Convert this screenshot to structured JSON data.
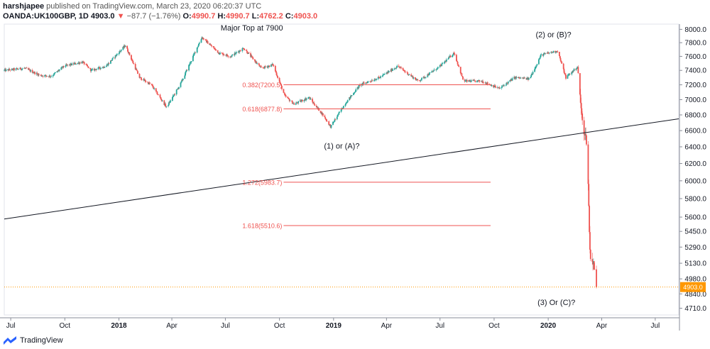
{
  "header": {
    "author": "harshjapee",
    "published": "published on TradingView.com, March 23, 2020 06:20:37 UTC",
    "symbol": "OANDA:UK100GBP, 1D",
    "last": "4903.0",
    "arrow": "▼",
    "change": "−87.7 (−1.76%)",
    "o_label": "O:",
    "o_val": "4990.7",
    "h_label": "H:",
    "h_val": "4990.7",
    "l_label": "L:",
    "l_val": "4762.2",
    "c_label": "C:",
    "c_val": "4903.0"
  },
  "footer": {
    "brand": "TradingView"
  },
  "colors": {
    "up": "#26a69a",
    "down": "#ef5350",
    "fib": "#ef5350",
    "trend": "#131722",
    "last": "#ff9800"
  },
  "chart_data": {
    "type": "candlestick",
    "y_scale": "log",
    "ylim": [
      4650,
      8080
    ],
    "y_ticks": [
      "8000.0",
      "7800.0",
      "7600.0",
      "7400.0",
      "7200.0",
      "7000.0",
      "6800.0",
      "6600.0",
      "6400.0",
      "6200.0",
      "6000.0",
      "5800.0",
      "5600.0",
      "5450.0",
      "5290.0",
      "5130.0",
      "4980.0",
      "4840.0",
      "4710.0"
    ],
    "x_ticks": [
      "Jul",
      "Oct",
      "2018",
      "Apr",
      "Jul",
      "Oct",
      "2019",
      "Apr",
      "Jul",
      "Oct",
      "2020",
      "Apr",
      "Jul"
    ],
    "x_range": [
      "2017-06-20",
      "2020-08-10"
    ],
    "last_price": "4903.0",
    "price_path": [
      [
        "2017-06-20",
        7400
      ],
      [
        "2017-07-25",
        7430
      ],
      [
        "2017-08-20",
        7330
      ],
      [
        "2017-09-08",
        7320
      ],
      [
        "2017-09-30",
        7460
      ],
      [
        "2017-10-31",
        7520
      ],
      [
        "2017-11-15",
        7400
      ],
      [
        "2017-12-10",
        7460
      ],
      [
        "2018-01-12",
        7760
      ],
      [
        "2018-02-05",
        7300
      ],
      [
        "2018-02-25",
        7200
      ],
      [
        "2018-03-23",
        6900
      ],
      [
        "2018-04-15",
        7200
      ],
      [
        "2018-05-22",
        7880
      ],
      [
        "2018-06-20",
        7650
      ],
      [
        "2018-07-10",
        7600
      ],
      [
        "2018-08-01",
        7720
      ],
      [
        "2018-08-31",
        7430
      ],
      [
        "2018-09-20",
        7480
      ],
      [
        "2018-10-10",
        7050
      ],
      [
        "2018-10-26",
        6940
      ],
      [
        "2018-11-20",
        7030
      ],
      [
        "2018-12-14",
        6800
      ],
      [
        "2018-12-27",
        6650
      ],
      [
        "2019-01-20",
        6940
      ],
      [
        "2019-02-15",
        7200
      ],
      [
        "2019-03-20",
        7300
      ],
      [
        "2019-04-20",
        7460
      ],
      [
        "2019-05-25",
        7250
      ],
      [
        "2019-06-30",
        7450
      ],
      [
        "2019-07-25",
        7650
      ],
      [
        "2019-08-10",
        7250
      ],
      [
        "2019-09-10",
        7250
      ],
      [
        "2019-10-10",
        7150
      ],
      [
        "2019-11-05",
        7300
      ],
      [
        "2019-11-30",
        7280
      ],
      [
        "2019-12-20",
        7620
      ],
      [
        "2020-01-17",
        7680
      ],
      [
        "2020-01-31",
        7300
      ],
      [
        "2020-02-20",
        7450
      ],
      [
        "2020-02-28",
        6700
      ],
      [
        "2020-03-06",
        6480
      ],
      [
        "2020-03-09",
        5960
      ],
      [
        "2020-03-12",
        5240
      ],
      [
        "2020-03-16",
        5150
      ],
      [
        "2020-03-19",
        5100
      ],
      [
        "2020-03-23",
        4903
      ]
    ],
    "fib_levels": [
      {
        "label": "0.382(7200.5)",
        "value": 7200.5
      },
      {
        "label": "0.618(6877.8)",
        "value": 6877.8
      },
      {
        "label": "1.272(5983.7)",
        "value": 5983.7
      },
      {
        "label": "1.618(5510.6)",
        "value": 5510.6
      }
    ],
    "fib_range": [
      "2018-10-08",
      "2019-09-25"
    ],
    "trendline": [
      [
        "2017-06-20",
        5580
      ],
      [
        "2020-08-10",
        6750
      ]
    ],
    "annotations": [
      {
        "text": "Major Top at 7900",
        "date": "2018-08-15",
        "price": 7980
      },
      {
        "text": "(2) or (B)?",
        "date": "2020-01-10",
        "price": 7880
      },
      {
        "text": "(1) or (A)?",
        "date": "2019-01-15",
        "price": 6380
      },
      {
        "text": "(3) Or (C)?",
        "date": "2020-01-15",
        "price": 4740
      }
    ]
  }
}
